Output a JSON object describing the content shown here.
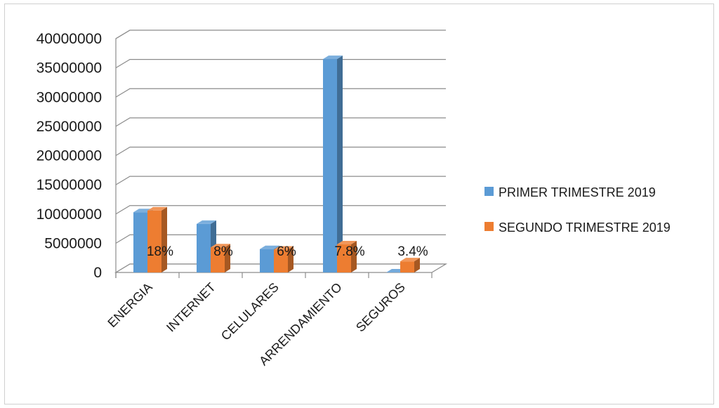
{
  "chart_data": {
    "type": "bar",
    "categories": [
      "ENERGIA",
      "INTERNET",
      "CELULARES",
      "ARRENDAMIENTO",
      "SEGUROS"
    ],
    "series": [
      {
        "name": "PRIMER TRIMESTRE 2019",
        "color": "#5b9bd5",
        "values": [
          10300000,
          8300000,
          4000000,
          36500000,
          0
        ]
      },
      {
        "name": "SEGUNDO TRIMESTRE 2019",
        "color": "#ed7d31",
        "values": [
          10600000,
          4300000,
          3900000,
          4800000,
          1900000
        ]
      }
    ],
    "data_labels": [
      "18%",
      "8%",
      "6%",
      "7.8%",
      "3.4%"
    ],
    "y_ticks": [
      "0",
      "5000000",
      "10000000",
      "15000000",
      "20000000",
      "25000000",
      "30000000",
      "35000000",
      "40000000"
    ],
    "ylim": [
      0,
      40000000
    ],
    "grid": true,
    "legend_position": "right",
    "style": "3d-clustered-column",
    "title": "",
    "xlabel": "",
    "ylabel": ""
  }
}
